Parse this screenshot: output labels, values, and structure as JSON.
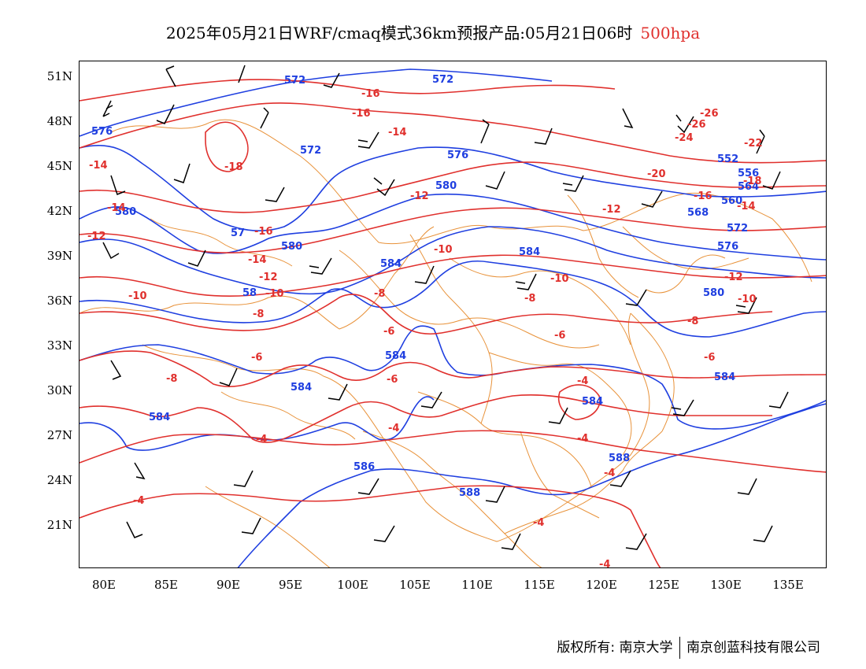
{
  "title": {
    "main": "2025年05月21日WRF/cmaq模式36km预报产品:05月21日06时",
    "level": "500hpa"
  },
  "axes": {
    "lat_labels": [
      "51N",
      "48N",
      "45N",
      "42N",
      "39N",
      "36N",
      "33N",
      "30N",
      "27N",
      "24N",
      "21N"
    ],
    "lon_labels": [
      "80E",
      "85E",
      "90E",
      "95E",
      "100E",
      "105E",
      "110E",
      "115E",
      "120E",
      "125E",
      "130E",
      "135E"
    ]
  },
  "layers": {
    "geopotential_height": {
      "color": "#1f3fe0",
      "labels": [
        "572",
        "572",
        "576",
        "572",
        "576",
        "580",
        "580",
        "57",
        "580",
        "584",
        "584",
        "58",
        "584",
        "584",
        "584",
        "584",
        "586",
        "588",
        "588",
        "572",
        "576",
        "580",
        "584",
        "552",
        "556",
        "568",
        "560",
        "564"
      ]
    },
    "temperature": {
      "color": "#e0302d",
      "labels": [
        "-16",
        "-16",
        "-14",
        "-18",
        "-14",
        "-14",
        "-12",
        "-16",
        "-14",
        "-12",
        "-10",
        "-12",
        "-10",
        "-10",
        "-8",
        "-8",
        "-8",
        "-6",
        "-6",
        "-6",
        "-8",
        "-8",
        "-6",
        "-6",
        "-4",
        "-4",
        "-4",
        "-4",
        "-4",
        "-4",
        "-4",
        "-4",
        "-26",
        "-26",
        "-24",
        "-22",
        "-20",
        "-18",
        "-16",
        "-14",
        "-12",
        "-12",
        "-10",
        "-10"
      ]
    },
    "county_boundaries": {
      "color": "#e8923a"
    },
    "wind_barbs": {
      "color": "#000000"
    }
  },
  "footer": {
    "copyright": "版权所有: 南京大学",
    "company": "南京创蓝科技有限公司"
  }
}
